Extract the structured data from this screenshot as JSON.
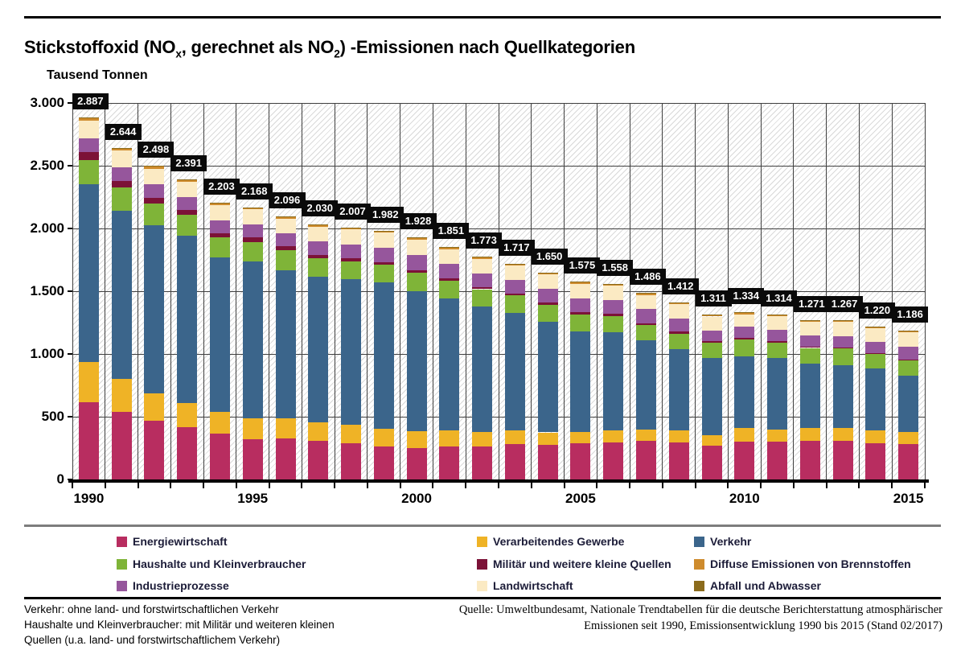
{
  "page": {
    "title": {
      "part1": "Stickstoffoxid (NO",
      "sub1": "x",
      "part2": ", gerechnet als NO",
      "sub2": "2",
      "part3": ") -Emissionen nach Quellkategorien"
    },
    "unit_label": "Tausend Tonnen"
  },
  "chart_data": {
    "type": "bar",
    "stacked": true,
    "title": "Stickstoffoxid (NOx, gerechnet als NO2) -Emissionen nach Quellkategorien",
    "ylabel": "Tausend Tonnen",
    "ylim": [
      0,
      3000
    ],
    "grid": true,
    "plot_hatch_background": true,
    "y_tick_values": [
      0,
      500,
      1000,
      1500,
      2000,
      2500,
      3000
    ],
    "y_tick_labels": [
      "0",
      "500",
      "1.000",
      "1.500",
      "2.000",
      "2.500",
      "3.000"
    ],
    "x": [
      1990,
      1991,
      1992,
      1993,
      1994,
      1995,
      1996,
      1997,
      1998,
      1999,
      2000,
      2001,
      2002,
      2003,
      2004,
      2005,
      2006,
      2007,
      2008,
      2009,
      2010,
      2011,
      2012,
      2013,
      2014,
      2015
    ],
    "x_axis_labeled_years": [
      1990,
      1995,
      2000,
      2005,
      2010,
      2015
    ],
    "totals_values": [
      2887,
      2644,
      2498,
      2391,
      2203,
      2168,
      2096,
      2030,
      2007,
      1982,
      1928,
      1851,
      1773,
      1717,
      1650,
      1575,
      1558,
      1486,
      1412,
      1311,
      1334,
      1314,
      1271,
      1267,
      1220,
      1186
    ],
    "totals_labels": [
      "2.887",
      "2.644",
      "2.498",
      "2.391",
      "2.203",
      "2.168",
      "2.096",
      "2.030",
      "2.007",
      "1.982",
      "1.928",
      "1.851",
      "1.773",
      "1.717",
      "1.650",
      "1.575",
      "1.558",
      "1.486",
      "1.412",
      "1.311",
      "1.334",
      "1.314",
      "1.271",
      "1.267",
      "1.220",
      "1.186"
    ],
    "series_note": "segment values estimated from bar pixel heights; stack order is bottom-to-top",
    "series": [
      {
        "name": "Energiewirtschaft",
        "color": "#b82d60",
        "values": [
          613,
          540,
          465,
          415,
          365,
          323,
          330,
          305,
          290,
          265,
          250,
          265,
          265,
          280,
          275,
          286,
          295,
          305,
          295,
          270,
          302,
          300,
          310,
          310,
          290,
          280
        ]
      },
      {
        "name": "Verarbeitendes Gewerbe",
        "color": "#efb326",
        "values": [
          320,
          260,
          220,
          195,
          175,
          161,
          155,
          150,
          145,
          140,
          135,
          125,
          115,
          110,
          100,
          91,
          95,
          95,
          95,
          80,
          107,
          100,
          98,
          100,
          98,
          97
        ]
      },
      {
        "name": "Verkehr",
        "color": "#3b658b",
        "values": [
          1420,
          1341,
          1340,
          1330,
          1229,
          1254,
          1180,
          1158,
          1159,
          1164,
          1113,
          1050,
          996,
          940,
          884,
          805,
          780,
          708,
          647,
          617,
          571,
          568,
          515,
          502,
          495,
          451
        ]
      },
      {
        "name": "Haushalte und Kleinverbraucher",
        "color": "#7fb438",
        "values": [
          190,
          185,
          175,
          170,
          160,
          155,
          165,
          150,
          145,
          140,
          150,
          145,
          140,
          135,
          130,
          129,
          130,
          120,
          125,
          120,
          137,
          120,
          125,
          130,
          115,
          125
        ]
      },
      {
        "name": "Militär und weitere kleine Quellen",
        "color": "#7c1237",
        "values": [
          65,
          55,
          45,
          40,
          35,
          35,
          30,
          28,
          25,
          23,
          21,
          20,
          19,
          18,
          20,
          22,
          20,
          18,
          16,
          14,
          13,
          12,
          10,
          9,
          7,
          5
        ]
      },
      {
        "name": "Industrieprozesse",
        "color": "#96569c",
        "values": [
          112,
          108,
          105,
          100,
          100,
          105,
          100,
          105,
          110,
          115,
          118,
          110,
          105,
          105,
          110,
          108,
          110,
          110,
          105,
          85,
          86,
          90,
          88,
          88,
          88,
          97
        ]
      },
      {
        "name": "Landwirtschaft",
        "color": "#fbeac3",
        "values": [
          140,
          130,
          125,
          120,
          120,
          120,
          120,
          118,
          118,
          120,
          124,
          120,
          118,
          115,
          115,
          117,
          112,
          115,
          115,
          112,
          98,
          110,
          112,
          115,
          115,
          119
        ]
      },
      {
        "name": "Diffuse Emissionen von Brennstoffen",
        "color": "#ce8b2d",
        "values": [
          25,
          23,
          21,
          19,
          17,
          13,
          14,
          14,
          13,
          13,
          15,
          14,
          13,
          12,
          14,
          15,
          14,
          13,
          12,
          11,
          18,
          12,
          11,
          11,
          10,
          10
        ]
      },
      {
        "name": "Abfall und Abwasser",
        "color": "#8b6b1c",
        "values": [
          2,
          2,
          2,
          2,
          2,
          2,
          2,
          2,
          2,
          2,
          2,
          2,
          2,
          2,
          2,
          2,
          2,
          2,
          2,
          2,
          2,
          2,
          2,
          2,
          2,
          2
        ]
      }
    ],
    "legend_position": "bottom",
    "legend_columns": [
      [
        "Energiewirtschaft",
        "Haushalte und Kleinverbraucher",
        "Industrieprozesse"
      ],
      [
        "Verarbeitendes Gewerbe",
        "Militär und weitere kleine Quellen",
        "Landwirtschaft"
      ],
      [
        "Verkehr",
        "Diffuse Emissionen von Brennstoffen",
        "Abfall und Abwasser"
      ]
    ]
  },
  "footnotes": {
    "lines": [
      "Verkehr: ohne land- und forstwirtschaftlichen Verkehr",
      "Haushalte und Kleinverbraucher: mit Militär und weiteren kleinen",
      "Quellen (u.a. land- und forstwirtschaftlichem Verkehr)"
    ]
  },
  "source": {
    "lines": [
      "Quelle: Umweltbundesamt, Nationale Trendtabellen für die deutsche Berichterstattung atmosphärischer",
      "Emissionen seit 1990, Emissionsentwicklung 1990 bis 2015 (Stand 02/2017)"
    ]
  }
}
